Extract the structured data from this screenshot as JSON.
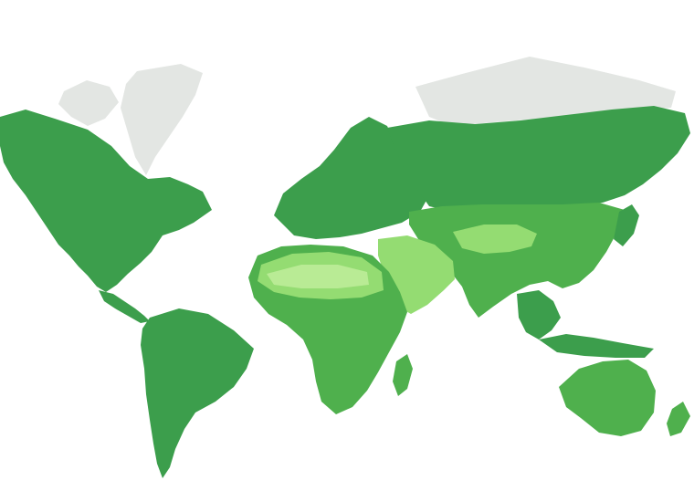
{
  "map": {
    "palette": {
      "background": "#ffffff",
      "ice": "#e3e6e3",
      "forest_dark": "#2f8a45",
      "forest": "#3c9e4c",
      "grass": "#4fb04d",
      "grass_light": "#6cc55a",
      "desert": "#94dc72",
      "desert_pale": "#b9eb95"
    },
    "regions": [
      {
        "id": "greenland",
        "type": "ice"
      },
      {
        "id": "arctic-islands",
        "type": "ice"
      },
      {
        "id": "siberia-north",
        "type": "ice"
      },
      {
        "id": "north-america",
        "type": "forest"
      },
      {
        "id": "south-america",
        "type": "forest"
      },
      {
        "id": "europe",
        "type": "forest"
      },
      {
        "id": "russia",
        "type": "forest"
      },
      {
        "id": "africa",
        "type": "grass"
      },
      {
        "id": "sahara",
        "type": "desert"
      },
      {
        "id": "arabia",
        "type": "desert"
      },
      {
        "id": "asia",
        "type": "grass"
      },
      {
        "id": "southeast-asia",
        "type": "forest"
      },
      {
        "id": "australia",
        "type": "grass"
      },
      {
        "id": "new-zealand",
        "type": "grass"
      }
    ]
  }
}
